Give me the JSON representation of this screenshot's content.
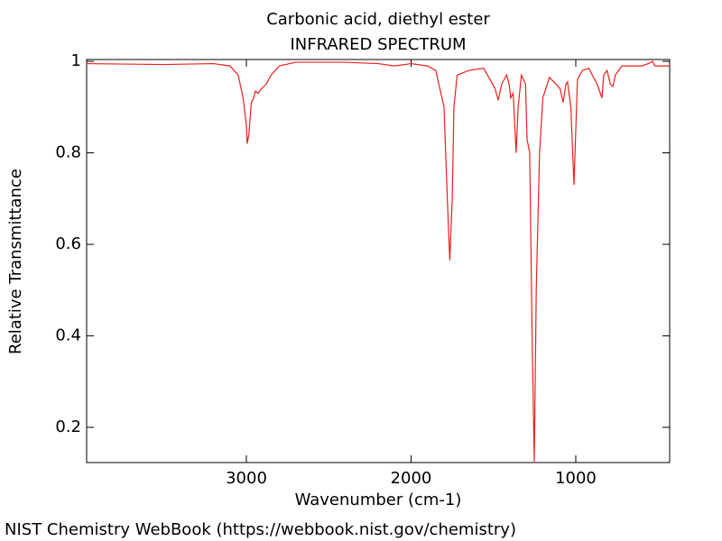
{
  "chart_data": {
    "type": "line",
    "title": "Carbonic acid, diethyl ester",
    "subtitle": "INFRARED SPECTRUM",
    "x_label": "Wavenumber (cm-1)",
    "y_label": "Relative Transmittance",
    "footer": "NIST Chemistry WebBook (https://webbook.nist.gov/chemistry)",
    "xlim": [
      3970,
      430
    ],
    "ylim": [
      0.123,
      1.004
    ],
    "xticks": [
      3000,
      2000,
      1000
    ],
    "yticks": [
      0.2,
      0.4,
      0.6,
      0.8,
      1
    ],
    "series": [
      {
        "name": "spectrum",
        "color": "#e8201c",
        "x": [
          3970,
          3500,
          3200,
          3100,
          3050,
          3020,
          3000,
          2995,
          2985,
          2970,
          2956,
          2945,
          2930,
          2910,
          2880,
          2850,
          2800,
          2700,
          2400,
          2200,
          2100,
          2000,
          1900,
          1850,
          1800,
          1780,
          1765,
          1750,
          1740,
          1720,
          1650,
          1560,
          1520,
          1490,
          1471,
          1450,
          1420,
          1405,
          1395,
          1380,
          1362,
          1350,
          1330,
          1305,
          1296,
          1280,
          1265,
          1252,
          1240,
          1220,
          1200,
          1160,
          1120,
          1095,
          1077,
          1060,
          1050,
          1030,
          1011,
          1000,
          990,
          960,
          920,
          900,
          870,
          841,
          830,
          810,
          790,
          775,
          760,
          720,
          650,
          600,
          560,
          534,
          520,
          480,
          430
        ],
        "values": [
          0.995,
          0.993,
          0.995,
          0.99,
          0.97,
          0.92,
          0.86,
          0.82,
          0.84,
          0.91,
          0.92,
          0.935,
          0.93,
          0.94,
          0.95,
          0.97,
          0.99,
          0.998,
          0.998,
          0.995,
          0.99,
          0.995,
          0.99,
          0.98,
          0.9,
          0.7,
          0.565,
          0.7,
          0.9,
          0.97,
          0.98,
          0.985,
          0.96,
          0.94,
          0.915,
          0.95,
          0.97,
          0.95,
          0.92,
          0.93,
          0.8,
          0.9,
          0.97,
          0.95,
          0.83,
          0.8,
          0.4,
          0.125,
          0.5,
          0.8,
          0.92,
          0.965,
          0.95,
          0.94,
          0.91,
          0.95,
          0.955,
          0.9,
          0.73,
          0.85,
          0.96,
          0.98,
          0.985,
          0.97,
          0.95,
          0.92,
          0.97,
          0.98,
          0.95,
          0.945,
          0.97,
          0.99,
          0.99,
          0.99,
          0.995,
          1.0,
          0.99,
          0.99,
          0.99
        ]
      }
    ]
  }
}
